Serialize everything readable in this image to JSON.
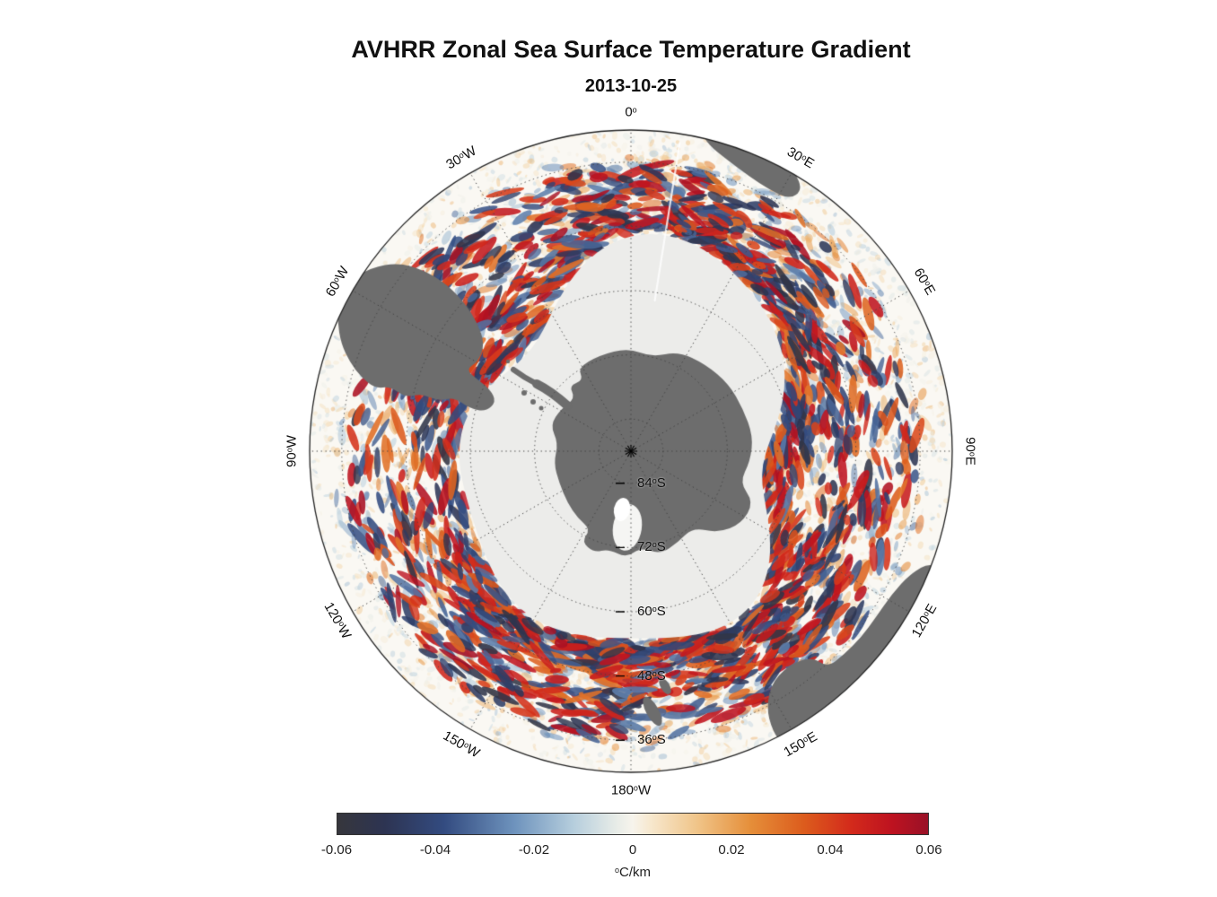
{
  "title": "AVHRR Zonal Sea Surface Temperature Gradient",
  "subtitle": "2013-10-25",
  "chart_data": {
    "type": "heatmap",
    "projection": "south_polar_stereographic",
    "description": "Southern Ocean map centered on Antarctica showing zonal SST gradient filaments; warm (orange/red) and cool (blue/black) mesoscale streaks ring the pale sea-ice zone; gray land: Antarctica with peninsula, southern South America, southern Africa, Australia with Tasmania, New Zealand.",
    "variable": "zonal sea surface temperature gradient",
    "units": "°C/km",
    "value_range": [
      -0.06,
      0.06
    ],
    "grid": {
      "outer_latitude_deg_s": 30,
      "latitude_rings_deg_s": [
        36,
        48,
        60,
        72,
        84
      ],
      "latitude_labels": [
        {
          "text": "84°S",
          "lat": 84
        },
        {
          "text": "72°S",
          "lat": 72
        },
        {
          "text": "60°S",
          "lat": 60
        },
        {
          "text": "48°S",
          "lat": 48
        },
        {
          "text": "36°S",
          "lat": 36
        }
      ],
      "longitude_labels": [
        {
          "text": "0°",
          "angle_deg": 0
        },
        {
          "text": "30°E",
          "angle_deg": 30
        },
        {
          "text": "60°E",
          "angle_deg": 60
        },
        {
          "text": "90°E",
          "angle_deg": 90
        },
        {
          "text": "120°E",
          "angle_deg": 120
        },
        {
          "text": "150°E",
          "angle_deg": 150
        },
        {
          "text": "180°W",
          "angle_deg": 180
        },
        {
          "text": "150°W",
          "angle_deg": 210
        },
        {
          "text": "120°W",
          "angle_deg": 240
        },
        {
          "text": "90°W",
          "angle_deg": 270
        },
        {
          "text": "60°W",
          "angle_deg": 300
        },
        {
          "text": "30°W",
          "angle_deg": 330
        }
      ]
    },
    "colorbar": {
      "label": "°C/km",
      "ticks": [
        {
          "text": "-0.06",
          "value": -0.06
        },
        {
          "text": "-0.04",
          "value": -0.04
        },
        {
          "text": "-0.02",
          "value": -0.02
        },
        {
          "text": "0",
          "value": 0
        },
        {
          "text": "0.02",
          "value": 0.02
        },
        {
          "text": "0.04",
          "value": 0.04
        },
        {
          "text": "0.06",
          "value": 0.06
        }
      ],
      "stops": [
        {
          "p": 0.0,
          "c": "#36363c"
        },
        {
          "p": 0.08,
          "c": "#2d3452"
        },
        {
          "p": 0.18,
          "c": "#334b80"
        },
        {
          "p": 0.3,
          "c": "#6e93bd"
        },
        {
          "p": 0.4,
          "c": "#b6cedd"
        },
        {
          "p": 0.47,
          "c": "#e6ebe7"
        },
        {
          "p": 0.5,
          "c": "#f7f4ec"
        },
        {
          "p": 0.53,
          "c": "#f7e8ce"
        },
        {
          "p": 0.61,
          "c": "#f0c488"
        },
        {
          "p": 0.7,
          "c": "#e58e39"
        },
        {
          "p": 0.79,
          "c": "#dc5c1d"
        },
        {
          "p": 0.87,
          "c": "#d32a1b"
        },
        {
          "p": 0.94,
          "c": "#bd1220"
        },
        {
          "p": 1.0,
          "c": "#991127"
        }
      ]
    },
    "colors": {
      "land": "#6d6d6d",
      "sea_ice": "#ececea",
      "ocean_base": "#faf8f3",
      "grid": "#444444",
      "outline": "#222222"
    }
  }
}
